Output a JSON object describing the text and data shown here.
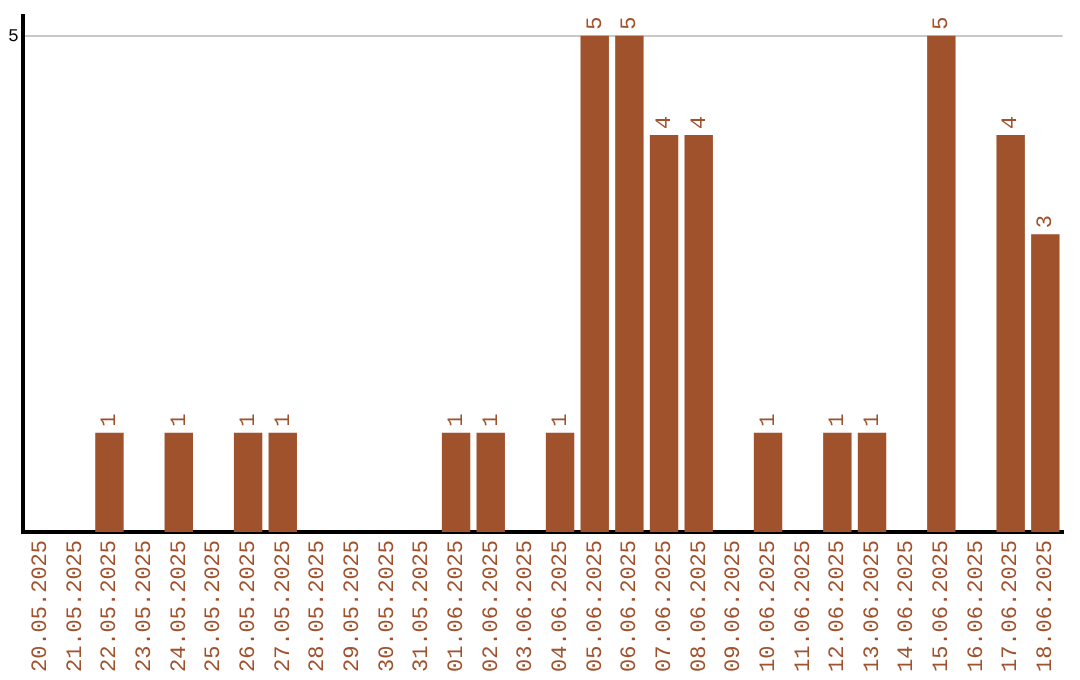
{
  "chart_data": {
    "type": "bar",
    "categories": [
      "20.05.2025",
      "21.05.2025",
      "22.05.2025",
      "23.05.2025",
      "24.05.2025",
      "25.05.2025",
      "26.05.2025",
      "27.05.2025",
      "28.05.2025",
      "29.05.2025",
      "30.05.2025",
      "31.05.2025",
      "01.06.2025",
      "02.06.2025",
      "03.06.2025",
      "04.06.2025",
      "05.06.2025",
      "06.06.2025",
      "07.06.2025",
      "08.06.2025",
      "09.06.2025",
      "10.06.2025",
      "11.06.2025",
      "12.06.2025",
      "13.06.2025",
      "14.06.2025",
      "15.06.2025",
      "16.06.2025",
      "17.06.2025",
      "18.06.2025"
    ],
    "values": [
      0,
      0,
      1,
      0,
      1,
      0,
      1,
      1,
      0,
      0,
      0,
      0,
      1,
      1,
      0,
      1,
      5,
      5,
      4,
      4,
      0,
      1,
      0,
      1,
      1,
      0,
      5,
      0,
      4,
      3
    ],
    "value_labels": [
      null,
      null,
      "1",
      null,
      "1",
      null,
      "1",
      "1",
      null,
      null,
      null,
      null,
      "1",
      "1",
      null,
      "1",
      "5",
      "5",
      "4",
      "4",
      null,
      "1",
      null,
      "1",
      "1",
      null,
      "5",
      null,
      "4",
      "3"
    ],
    "color": "#a0522d",
    "ylim": [
      0,
      5.2
    ],
    "yticks": [
      5
    ],
    "grid": "y",
    "legend": false
  }
}
